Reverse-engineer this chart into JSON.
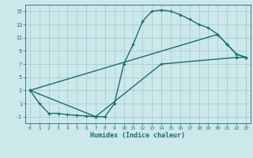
{
  "xlabel": "Humidex (Indice chaleur)",
  "bg_color": "#cde8ea",
  "grid_color": "#a8cdd0",
  "line_color": "#1a6e6e",
  "xlim": [
    -0.5,
    23.5
  ],
  "ylim": [
    -2,
    16
  ],
  "xticks": [
    0,
    1,
    2,
    3,
    4,
    5,
    6,
    7,
    8,
    9,
    10,
    11,
    12,
    13,
    14,
    15,
    16,
    17,
    18,
    19,
    20,
    21,
    22,
    23
  ],
  "yticks": [
    -1,
    1,
    3,
    5,
    7,
    9,
    11,
    13,
    15
  ],
  "line1_x": [
    0,
    1,
    2,
    3,
    4,
    5,
    6,
    7,
    8,
    9,
    10,
    11,
    12,
    13,
    14,
    15,
    16,
    17,
    18,
    19,
    20,
    21,
    22,
    23
  ],
  "line1_y": [
    3,
    1,
    -0.5,
    -0.5,
    -0.7,
    -0.8,
    -0.9,
    -1.0,
    -1.0,
    1.0,
    7.0,
    10.0,
    13.5,
    15.0,
    15.2,
    15.0,
    14.5,
    13.8,
    13.0,
    12.5,
    11.5,
    10.0,
    8.5,
    8.0
  ],
  "line2_x": [
    0,
    7,
    14,
    22,
    23
  ],
  "line2_y": [
    3,
    -1.0,
    7.0,
    8.0,
    8.0
  ],
  "line3_x": [
    0,
    20,
    21,
    22,
    23
  ],
  "line3_y": [
    3,
    11.5,
    10.0,
    8.5,
    8.0
  ]
}
